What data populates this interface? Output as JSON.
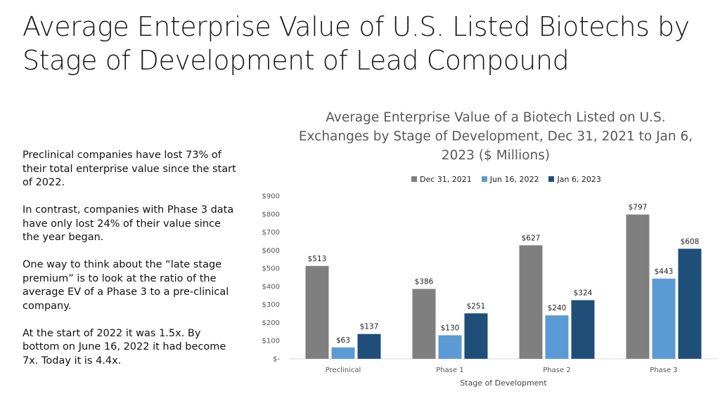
{
  "slide": {
    "title": "Average Enterprise Value of U.S. Listed Biotechs by Stage of Development of Lead Compound",
    "paragraphs": [
      "Preclinical companies have lost 73% of their total enterprise value since the start of 2022.",
      "In contrast, companies with Phase 3 data have only lost 24% of their value since the year began.",
      "One way to think about the “late stage premium” is to look at the ratio of the average EV of a Phase 3 to a pre-clinical company.",
      "At the start of 2022 it was 1.5x. By bottom on June 16, 2022 it had become 7x. Today it is 4.4x."
    ]
  },
  "chart_data": {
    "type": "bar",
    "title": "Average Enterprise Value of a Biotech Listed on U.S. Exchanges by Stage of Development, Dec 31, 2021 to Jan 6, 2023 ($ Millions)",
    "categories": [
      "Preclinical",
      "Phase 1",
      "Phase 2",
      "Phase 3"
    ],
    "series": [
      {
        "name": "Dec 31, 2021",
        "color": "#7f7f7f",
        "values": [
          513,
          386,
          627,
          797
        ],
        "labels": [
          "$513",
          "$386",
          "$627",
          "$797"
        ]
      },
      {
        "name": "Jun 16, 2022",
        "color": "#5b9bd5",
        "values": [
          63,
          130,
          240,
          443
        ],
        "labels": [
          "$63",
          "$130",
          "$240",
          "$443"
        ]
      },
      {
        "name": "Jan 6, 2023",
        "color": "#1f4e79",
        "values": [
          137,
          251,
          324,
          608
        ],
        "labels": [
          "$137",
          "$251",
          "$324",
          "$608"
        ]
      }
    ],
    "xlabel": "Stage of Development",
    "ylabel": "",
    "ylim": [
      0,
      900
    ],
    "yticks": [
      0,
      100,
      200,
      300,
      400,
      500,
      600,
      700,
      800,
      900
    ],
    "ytick_labels": [
      "$-",
      "$100",
      "$200",
      "$300",
      "$400",
      "$500",
      "$600",
      "$700",
      "$800",
      "$900"
    ],
    "legend_position": "top",
    "grid": false
  }
}
